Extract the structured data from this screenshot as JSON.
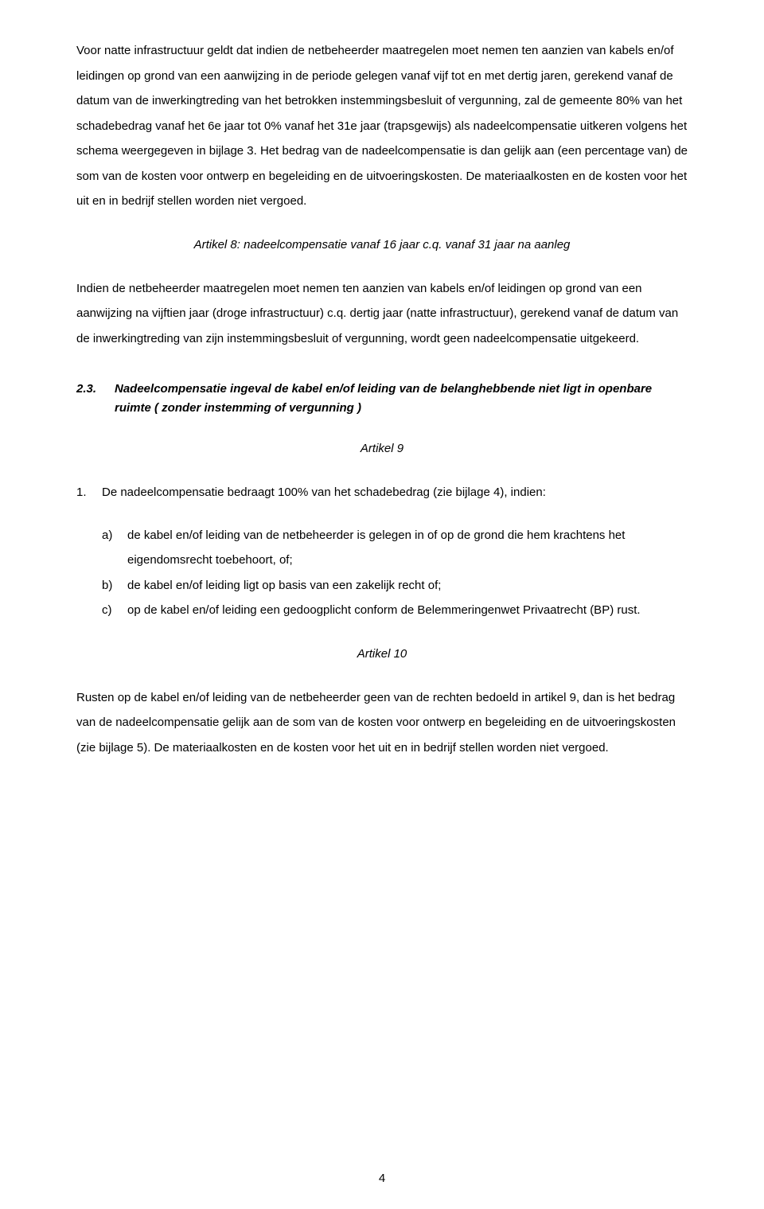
{
  "para1": "Voor natte infrastructuur geldt dat indien de netbeheerder maatregelen moet nemen ten aanzien van kabels en/of leidingen op grond van een aanwijzing in de periode gelegen vanaf vijf tot en met dertig jaren, gerekend vanaf de datum van de inwerkingtreding van het betrokken instemmingsbesluit of vergunning, zal de gemeente 80% van het schadebedrag vanaf het 6e jaar tot 0% vanaf het 31e jaar (trapsgewijs) als nadeelcompensatie uitkeren volgens het schema weergegeven in bijlage 3. Het bedrag van de nadeelcompensatie is dan gelijk aan (een percentage van) de som van de kosten voor ontwerp en begeleiding en de uitvoeringskosten. De materiaalkosten en de kosten voor het uit en in bedrijf stellen worden niet vergoed.",
  "article8_heading": "Artikel 8: nadeelcompensatie vanaf 16 jaar c.q. vanaf 31 jaar na aanleg",
  "para2": "Indien de netbeheerder maatregelen moet nemen ten aanzien van kabels en/of leidingen op grond van een aanwijzing na vijftien jaar (droge infrastructuur) c.q. dertig jaar (natte infrastructuur), gerekend vanaf de datum van de inwerkingtreding van zijn instemmingsbesluit of vergunning, wordt geen nadeelcompensatie uitgekeerd.",
  "section_num": "2.3.",
  "section_title": "Nadeelcompensatie ingeval de kabel en/of leiding van de belanghebbende niet ligt in openbare ruimte ( zonder instemming of vergunning )",
  "article9_heading": "Artikel 9",
  "art9_item1_marker": "1.",
  "art9_item1_text": "De nadeelcompensatie bedraagt 100% van het schadebedrag (zie bijlage 4), indien:",
  "art9_a_marker": "a)",
  "art9_a_text": "de kabel en/of leiding van de netbeheerder is gelegen in of op de grond die hem krachtens het eigendomsrecht toebehoort, of;",
  "art9_b_marker": "b)",
  "art9_b_text": "de kabel en/of leiding ligt op basis van een zakelijk recht of;",
  "art9_c_marker": "c)",
  "art9_c_text": "op de kabel en/of leiding een gedoogplicht conform de Belemmeringenwet Privaatrecht (BP) rust.",
  "article10_heading": "Artikel 10",
  "para3": "Rusten op de kabel en/of leiding van de netbeheerder geen van de rechten bedoeld in artikel 9, dan is het bedrag van de nadeelcompensatie gelijk aan de som van de kosten voor ontwerp en begeleiding en de uitvoeringskosten (zie bijlage 5). De materiaalkosten en de kosten voor het uit en in bedrijf stellen worden niet vergoed.",
  "page_number": "4"
}
